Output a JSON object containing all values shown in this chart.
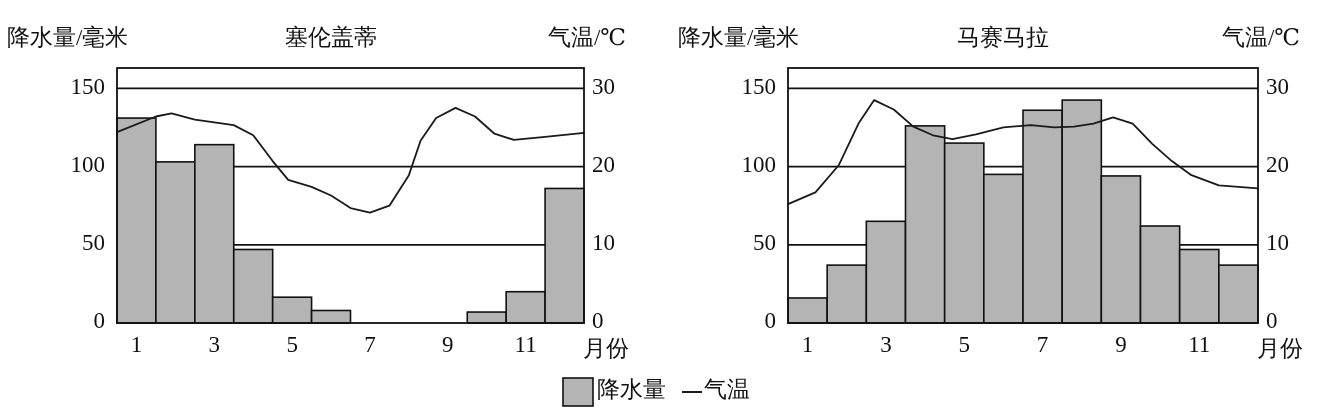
{
  "chart_data": [
    {
      "type": "bar",
      "title": "塞伦盖蒂",
      "ylabel": "降水量/毫米",
      "y2label": "气温/℃",
      "xlabel": "月份",
      "x": [
        1,
        2,
        3,
        4,
        5,
        6,
        7,
        8,
        9,
        10,
        11,
        12
      ],
      "xlim": [
        0.5,
        12.5
      ],
      "xticks": [
        1,
        3,
        5,
        7,
        9,
        11
      ],
      "ylim": [
        0,
        163
      ],
      "yticks": [
        0,
        50,
        100,
        150
      ],
      "y2lim": [
        0,
        32.6
      ],
      "y2ticks": [
        0,
        10,
        20,
        30
      ],
      "grid": "y",
      "legend": "bottom",
      "series": [
        {
          "name": "降水量",
          "color": "#b4b4b4",
          "values": [
            131,
            103,
            114,
            47,
            16.5,
            8,
            0,
            0,
            0,
            7,
            20,
            86
          ]
        },
        {
          "name": "气温",
          "type": "line",
          "axis": "y2",
          "color": "#1a1a1a",
          "x": [
            0.5,
            1.5,
            1.9,
            2.5,
            3.5,
            4,
            4.5,
            4.9,
            5.5,
            6,
            6.5,
            7,
            7.5,
            8,
            8.3,
            8.7,
            9.2,
            9.7,
            10.2,
            10.7,
            11.5,
            12.5
          ],
          "values": [
            24.4,
            26.4,
            26.8,
            26.0,
            25.3,
            24.0,
            20.7,
            18.3,
            17.4,
            16.3,
            14.7,
            14.1,
            15.0,
            18.9,
            23.3,
            26.2,
            27.5,
            26.4,
            24.2,
            23.4,
            23.8,
            24.3
          ]
        }
      ]
    },
    {
      "type": "bar",
      "title": "马赛马拉",
      "ylabel": "降水量/毫米",
      "y2label": "气温/℃",
      "xlabel": "月份",
      "x": [
        1,
        2,
        3,
        4,
        5,
        6,
        7,
        8,
        9,
        10,
        11,
        12
      ],
      "xlim": [
        0.5,
        12.5
      ],
      "xticks": [
        1,
        3,
        5,
        7,
        9,
        11
      ],
      "ylim": [
        0,
        163
      ],
      "yticks": [
        0,
        50,
        100,
        150
      ],
      "y2lim": [
        0,
        32.6
      ],
      "y2ticks": [
        0,
        10,
        20,
        30
      ],
      "grid": "y",
      "series": [
        {
          "color": "#b4b4b4",
          "values": [
            16,
            37,
            65,
            126,
            115,
            95,
            136,
            142.5,
            94,
            62,
            47,
            37
          ]
        },
        {
          "type": "line",
          "axis": "y2",
          "color": "#1a1a1a",
          "x": [
            0.5,
            1.2,
            1.8,
            2.3,
            2.7,
            3.2,
            3.7,
            4.2,
            4.7,
            5.3,
            6,
            6.7,
            7.3,
            7.8,
            8.3,
            8.8,
            9.3,
            9.8,
            10.3,
            10.8,
            11.5,
            12.5
          ],
          "values": [
            15.2,
            16.7,
            20.2,
            25.5,
            28.5,
            27.3,
            25.1,
            24.0,
            23.5,
            24.1,
            25.0,
            25.3,
            25.0,
            25.1,
            25.5,
            26.3,
            25.5,
            22.9,
            20.7,
            18.9,
            17.6,
            17.2
          ]
        }
      ]
    }
  ]
}
